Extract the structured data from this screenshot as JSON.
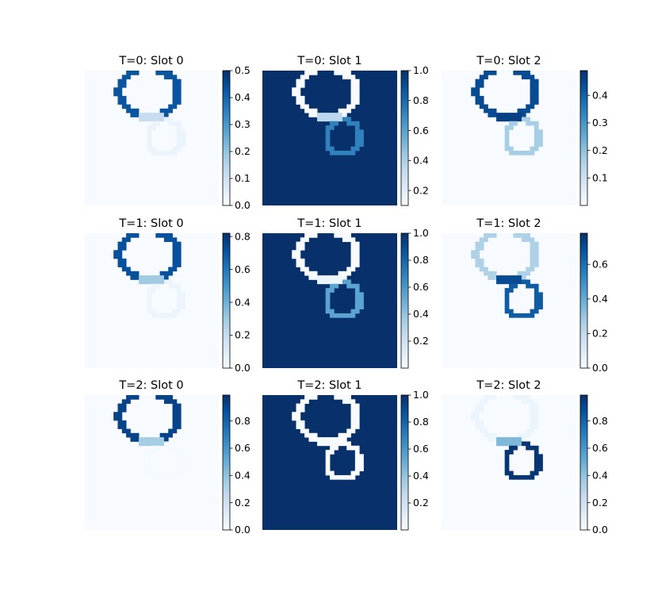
{
  "chart_data": [
    {
      "type": "heatmap",
      "title": "T=0: Slot 0",
      "colormap": "Blues",
      "cbar_ticks": [
        "0.0",
        "0.1",
        "0.2",
        "0.3",
        "0.4",
        "0.5"
      ],
      "vmin": 0.0,
      "vmax": 0.5,
      "upper_ring": {
        "visible": "partial",
        "value": 0.43
      },
      "lower_ring": {
        "value": 0.03
      },
      "neck_value": 0.12,
      "background_value": 0.0,
      "fill_value": 0.0
    },
    {
      "type": "heatmap",
      "title": "T=0: Slot 1",
      "colormap": "Blues",
      "cbar_ticks": [
        "0.2",
        "0.4",
        "0.6",
        "0.8",
        "1.0"
      ],
      "vmin": 0.1,
      "vmax": 1.0,
      "upper_ring": {
        "visible": "full",
        "value": 0.1
      },
      "lower_ring": {
        "value": 0.72
      },
      "neck_value": 0.35,
      "background_value": 1.0,
      "fill_value": 1.0
    },
    {
      "type": "heatmap",
      "title": "T=0: Slot 2",
      "colormap": "Blues",
      "cbar_ticks": [
        "0.1",
        "0.2",
        "0.3",
        "0.4"
      ],
      "vmin": 0.0,
      "vmax": 0.49,
      "upper_ring": {
        "visible": "full",
        "value": 0.44
      },
      "lower_ring": {
        "value": 0.17
      },
      "neck_value": 0.46,
      "background_value": 0.0,
      "fill_value": 0.0
    },
    {
      "type": "heatmap",
      "title": "T=1: Slot 0",
      "colormap": "Blues",
      "cbar_ticks": [
        "0.0",
        "0.2",
        "0.4",
        "0.6",
        "0.8"
      ],
      "vmin": 0.0,
      "vmax": 0.82,
      "upper_ring": {
        "visible": "partial",
        "value": 0.72
      },
      "lower_ring": {
        "value": 0.04
      },
      "neck_value": 0.3,
      "background_value": 0.0,
      "fill_value": 0.0
    },
    {
      "type": "heatmap",
      "title": "T=1: Slot 1",
      "colormap": "Blues",
      "cbar_ticks": [
        "0.2",
        "0.4",
        "0.6",
        "0.8",
        "1.0"
      ],
      "vmin": 0.0,
      "vmax": 1.0,
      "upper_ring": {
        "visible": "full",
        "value": 0.0
      },
      "lower_ring": {
        "value": 0.55
      },
      "neck_value": 0.05,
      "background_value": 1.0,
      "fill_value": 1.0
    },
    {
      "type": "heatmap",
      "title": "T=1: Slot 2",
      "colormap": "Blues",
      "cbar_ticks": [
        "0.0",
        "0.2",
        "0.4",
        "0.6"
      ],
      "vmin": 0.0,
      "vmax": 0.78,
      "upper_ring": {
        "visible": "full",
        "value": 0.25
      },
      "lower_ring": {
        "value": 0.65
      },
      "neck_value": 0.7,
      "background_value": 0.0,
      "fill_value": 0.0
    },
    {
      "type": "heatmap",
      "title": "T=2: Slot 0",
      "colormap": "Blues",
      "cbar_ticks": [
        "0.0",
        "0.2",
        "0.4",
        "0.6",
        "0.8"
      ],
      "vmin": 0.0,
      "vmax": 0.99,
      "upper_ring": {
        "visible": "partial",
        "value": 0.92
      },
      "lower_ring": {
        "value": 0.01
      },
      "neck_value": 0.35,
      "background_value": 0.0,
      "fill_value": 0.0
    },
    {
      "type": "heatmap",
      "title": "T=2: Slot 1",
      "colormap": "Blues",
      "cbar_ticks": [
        "0.2",
        "0.4",
        "0.6",
        "0.8",
        "1.0"
      ],
      "vmin": 0.0,
      "vmax": 1.0,
      "upper_ring": {
        "visible": "full",
        "value": 0.0
      },
      "lower_ring": {
        "value": 0.0
      },
      "neck_value": 0.0,
      "background_value": 1.0,
      "fill_value": 1.0
    },
    {
      "type": "heatmap",
      "title": "T=2: Slot 2",
      "colormap": "Blues",
      "cbar_ticks": [
        "0.0",
        "0.2",
        "0.4",
        "0.6",
        "0.8"
      ],
      "vmin": 0.0,
      "vmax": 0.99,
      "upper_ring": {
        "visible": "full",
        "value": 0.05
      },
      "lower_ring": {
        "value": 0.97
      },
      "neck_value": 0.45,
      "background_value": 0.0,
      "fill_value": 0.0
    }
  ]
}
